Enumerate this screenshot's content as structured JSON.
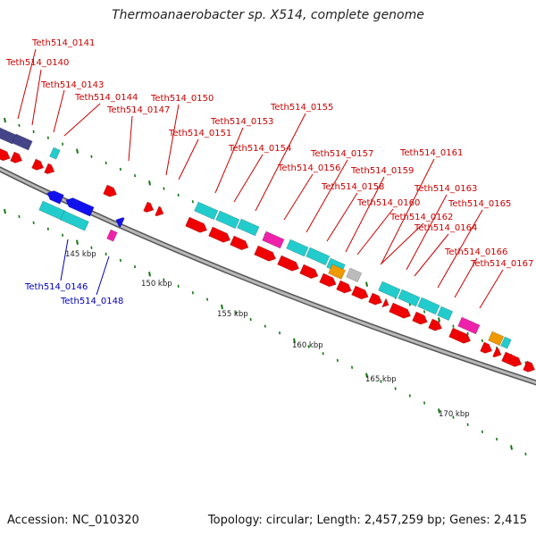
{
  "title": "Thermoanaerobacter sp. X514, complete genome",
  "footer": {
    "accession": "Accession: NC_010320",
    "summary": "Topology: circular; Length: 2,457,259 bp; Genes: 2,415"
  },
  "colors": {
    "backbone": "#909090",
    "label_plus": "#cc0000",
    "label_minus": "#0000bb",
    "tick": "#117711",
    "red": "#ee0000",
    "cyan": "#22cccc",
    "cyan_light": "#33eeee",
    "blue": "#1111ee",
    "magenta": "#ee22aa",
    "orange": "#ee9900",
    "gray": "#bbbbbb",
    "purple": "#444488"
  },
  "ruler_labels": [
    "145 kbp",
    "150 kbp",
    "155 kbp",
    "160 kbp",
    "165 kbp",
    "170 kbp"
  ],
  "gene_labels_plus": [
    "Teth514_0141",
    "Teth514_0140",
    "Teth514_0143",
    "Teth514_0144",
    "Teth514_0147",
    "Teth514_0150",
    "Teth514_0153",
    "Teth514_0151",
    "Teth514_0155",
    "Teth514_0154",
    "Teth514_0157",
    "Teth514_0156",
    "Teth514_0161",
    "Teth514_0159",
    "Teth514_0158",
    "Teth514_0163",
    "Teth514_0160",
    "Teth514_0165",
    "Teth514_0162",
    "Teth514_0164",
    "Teth514_0166",
    "Teth514_0167"
  ],
  "gene_labels_minus": [
    "Teth514_0146",
    "Teth514_0148"
  ]
}
